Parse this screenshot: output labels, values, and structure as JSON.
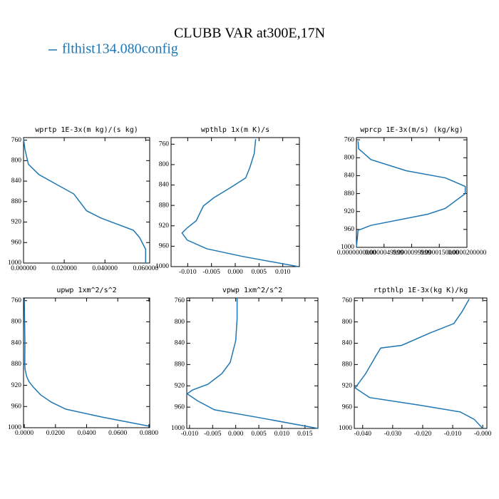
{
  "title": "CLUBB VAR at300E,17N",
  "legend": {
    "name": "flthist134.080config",
    "color": "#1f77b4"
  },
  "chart_data": [
    {
      "type": "line",
      "title": "wprtp  1E-3x(m kg)/(s kg)",
      "xlim": [
        0,
        0.062
      ],
      "ylim": [
        1000,
        755
      ],
      "xticks": [
        {
          "value": 0,
          "label": "0.000000"
        },
        {
          "value": 0.02,
          "label": "0.020000"
        },
        {
          "value": 0.04,
          "label": "0.040000"
        },
        {
          "value": 0.06,
          "label": "0.060000"
        }
      ],
      "yticks": [
        760,
        800,
        840,
        880,
        920,
        960,
        1000
      ],
      "series": [
        {
          "color": "#1f77b4",
          "x": [
            0.0,
            0.0007,
            0.0024,
            0.0075,
            0.016,
            0.0247,
            0.031,
            0.038,
            0.054,
            0.057,
            0.06,
            0.06
          ],
          "values": [
            757,
            778,
            807,
            827,
            846,
            865,
            898,
            912,
            936,
            950,
            973,
            1000
          ]
        }
      ]
    },
    {
      "type": "line",
      "title": "wpthlp  1x(m K)/s",
      "xlim": [
        -0.0135,
        0.0135
      ],
      "ylim": [
        1000,
        747
      ],
      "xticks": [
        {
          "value": -0.01,
          "label": "-0.010"
        },
        {
          "value": -0.005,
          "label": "-0.005"
        },
        {
          "value": 0,
          "label": "0.000"
        },
        {
          "value": 0.005,
          "label": "0.005"
        },
        {
          "value": 0.01,
          "label": "0.010"
        }
      ],
      "yticks": [
        760,
        800,
        840,
        880,
        920,
        960,
        1000
      ],
      "series": [
        {
          "color": "#1f77b4",
          "x": [
            0.0043,
            0.004,
            0.0031,
            0.0022,
            -0.0008,
            -0.0045,
            -0.0067,
            -0.0082,
            -0.0101,
            -0.0112,
            -0.0101,
            -0.006,
            0.0015,
            0.0133
          ],
          "values": [
            750,
            778,
            805,
            826,
            844,
            865,
            881,
            910,
            924,
            934,
            948,
            965,
            980,
            1000
          ]
        }
      ]
    },
    {
      "type": "line",
      "title": "wprcp  1E-3x(m/s) (kg/kg)",
      "xlim": [
        0,
        2e-05
      ],
      "ylim": [
        1000,
        755
      ],
      "xticks": [
        {
          "value": 0,
          "label": "0.0000000000"
        },
        {
          "value": 5e-06,
          "label": "0.0000049999"
        },
        {
          "value": 1e-05,
          "label": "0.0000099999"
        },
        {
          "value": 1.5e-05,
          "label": "0.0000150000"
        },
        {
          "value": 2e-05,
          "label": "0.0000200000"
        }
      ],
      "yticks": [
        760,
        800,
        840,
        880,
        920,
        960,
        1000
      ],
      "series": [
        {
          "color": "#1f77b4",
          "x": [
            3e-07,
            4e-07,
            2.6e-06,
            9e-06,
            1.61e-05,
            1.97e-05,
            1.97e-05,
            1.61e-05,
            1.29e-05,
            2.6e-06,
            3e-07,
            0.0
          ],
          "values": [
            763,
            780,
            804,
            829,
            845,
            864,
            880,
            913,
            926,
            951,
            962,
            1000
          ]
        }
      ]
    },
    {
      "type": "line",
      "title": "upwp  1xm^2/s^2",
      "xlim": [
        -0.0005,
        0.0805
      ],
      "ylim": [
        1000,
        755
      ],
      "xticks": [
        {
          "value": 0,
          "label": "0.0000"
        },
        {
          "value": 0.02,
          "label": "0.0200"
        },
        {
          "value": 0.04,
          "label": "0.0400"
        },
        {
          "value": 0.06,
          "label": "0.0600"
        },
        {
          "value": 0.08,
          "label": "0.0800"
        }
      ],
      "yticks": [
        760,
        800,
        840,
        880,
        920,
        960,
        1000
      ],
      "series": [
        {
          "color": "#1f77b4",
          "x": [
            0.0,
            0.0002,
            0.0004,
            0.0003,
            0.0005,
            0.0016,
            0.003,
            0.006,
            0.0105,
            0.0175,
            0.0267,
            0.05,
            0.08
          ],
          "values": [
            757,
            800,
            840,
            880,
            890,
            904,
            913,
            924,
            938,
            952,
            965,
            980,
            997
          ]
        }
      ]
    },
    {
      "type": "line",
      "title": "vpwp  1xm^2/s^2",
      "xlim": [
        -0.0106,
        0.0178
      ],
      "ylim": [
        1000,
        755
      ],
      "xticks": [
        {
          "value": -0.01,
          "label": "-0.010"
        },
        {
          "value": -0.005,
          "label": "-0.005"
        },
        {
          "value": 0,
          "label": "0.000"
        },
        {
          "value": 0.005,
          "label": "0.005"
        },
        {
          "value": 0.01,
          "label": "0.010"
        },
        {
          "value": 0.015,
          "label": "0.015"
        }
      ],
      "yticks": [
        760,
        800,
        840,
        880,
        920,
        960,
        1000
      ],
      "series": [
        {
          "color": "#1f77b4",
          "x": [
            0.0003,
            0.0003,
            0.0,
            -0.0012,
            -0.003,
            -0.006,
            -0.0094,
            -0.0105,
            -0.0083,
            -0.0046,
            0.0046,
            0.0178
          ],
          "values": [
            755,
            794,
            835,
            876,
            897,
            917,
            928,
            935,
            948,
            965,
            979,
            1000
          ]
        }
      ]
    },
    {
      "type": "line",
      "title": "rtpthlp  1E-3x(kg K)/kg",
      "xlim": [
        -0.0428,
        0.0014
      ],
      "ylim": [
        1000,
        755
      ],
      "xticks": [
        {
          "value": -0.04,
          "label": "-0.040"
        },
        {
          "value": -0.03,
          "label": "-0.030"
        },
        {
          "value": -0.02,
          "label": "-0.020"
        },
        {
          "value": -0.01,
          "label": "-0.010"
        },
        {
          "value": 0,
          "label": "-0.000"
        }
      ],
      "yticks": [
        760,
        800,
        840,
        880,
        920,
        960,
        1000
      ],
      "series": [
        {
          "color": "#1f77b4",
          "x": [
            -0.0045,
            -0.0068,
            -0.0096,
            -0.0177,
            -0.027,
            -0.034,
            -0.0355,
            -0.039,
            -0.0425,
            -0.0377,
            -0.0214,
            -0.0075,
            -0.0028,
            0.0
          ],
          "values": [
            757,
            780,
            803,
            821,
            844,
            849,
            863,
            897,
            924,
            942,
            956,
            969,
            983,
            1000
          ]
        }
      ]
    }
  ]
}
